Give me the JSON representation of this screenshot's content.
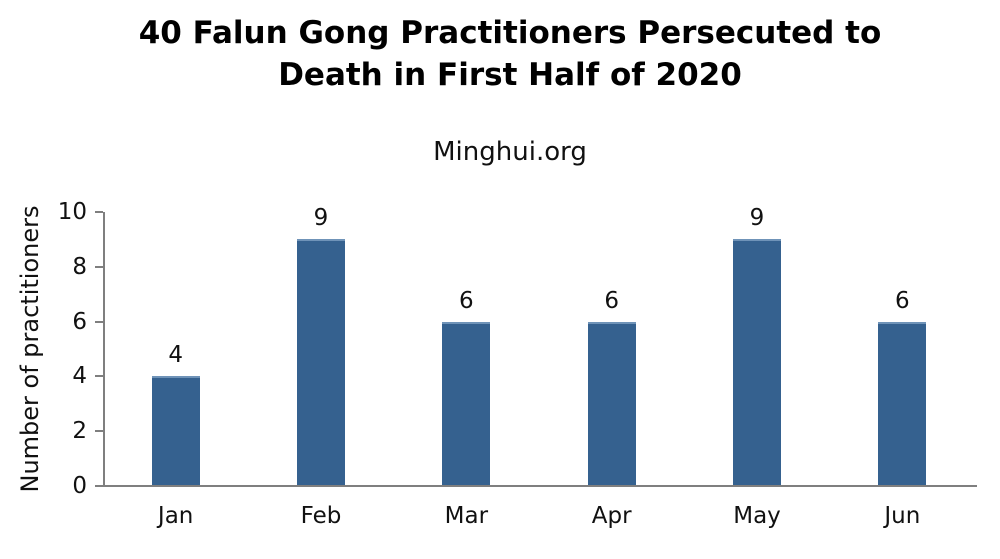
{
  "chart_data": {
    "type": "bar",
    "title": "40 Falun Gong Practitioners Persecuted to Death in First Half of 2020",
    "title_lines": [
      "40 Falun Gong Practitioners Persecuted to",
      "Death in First Half of 2020"
    ],
    "subtitle": "Minghui.org",
    "categories": [
      "Jan",
      "Feb",
      "Mar",
      "Apr",
      "May",
      "Jun"
    ],
    "values": [
      4,
      9,
      6,
      6,
      9,
      6
    ],
    "xlabel": "",
    "ylabel": "Number of practitioners",
    "ylim": [
      0,
      10
    ],
    "yticks": [
      0,
      2,
      4,
      6,
      8,
      10
    ],
    "value_labels_shown": true,
    "grid": false,
    "legend_position": "none",
    "bar_color": "#35618f",
    "bar_highlight_color": "#6f93b8",
    "axis_color": "#7f7f7f",
    "text_color": "#111111",
    "title_color": "#000000",
    "background_color": "#ffffff"
  }
}
